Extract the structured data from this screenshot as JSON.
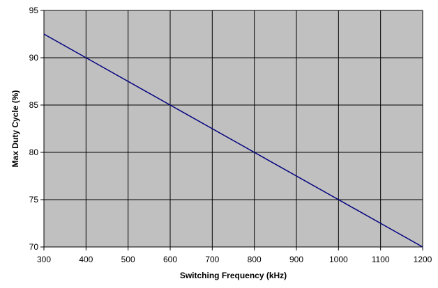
{
  "chart_data": {
    "type": "line",
    "title": "",
    "xlabel": "Switching Frequency (kHz)",
    "ylabel": "Max Duty Cycle (%)",
    "xlim": [
      300,
      1200
    ],
    "ylim": [
      70,
      95
    ],
    "xticks": [
      300,
      400,
      500,
      600,
      700,
      800,
      900,
      1000,
      1100,
      1200
    ],
    "yticks": [
      70,
      75,
      80,
      85,
      90,
      95
    ],
    "grid": true,
    "legend": "none",
    "series": [
      {
        "x": [
          300,
          400,
          500,
          600,
          700,
          800,
          900,
          1000,
          1100,
          1200
        ],
        "y": [
          92.5,
          90,
          87.5,
          85,
          82.5,
          80,
          77.5,
          75,
          72.5,
          70
        ],
        "color": "#00007f"
      }
    ],
    "plot_background": "#c0c0c0",
    "grid_color": "#000000"
  }
}
